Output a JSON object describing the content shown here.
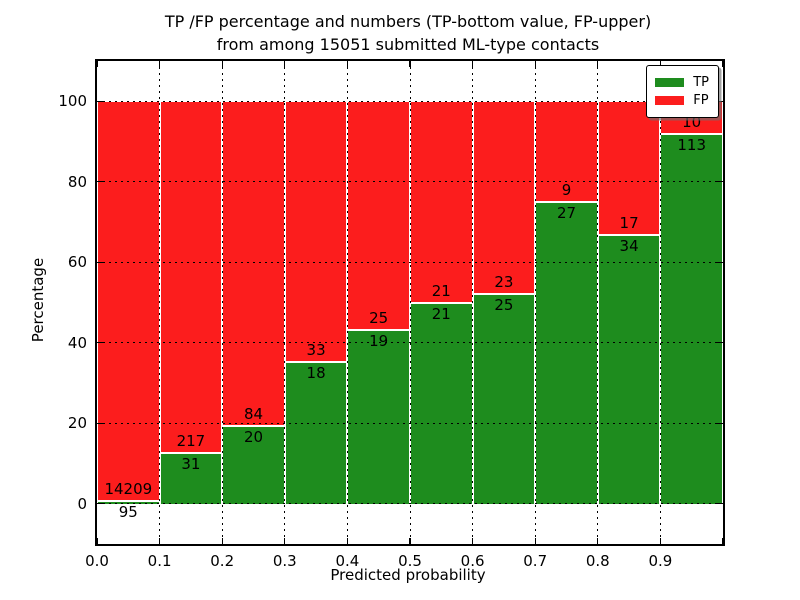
{
  "chart_data": {
    "type": "bar",
    "stacked": true,
    "title_line1": "TP /FP percentage and numbers (TP-bottom value, FP-upper)",
    "title_line2": "from among 15051 submitted ML-type contacts",
    "xlabel": "Predicted probability",
    "ylabel": "Percentage",
    "total_submitted": 15051,
    "xlim": [
      0.0,
      1.0
    ],
    "ylim": [
      -10,
      110
    ],
    "x_tick_labels": [
      "0.0",
      "0.1",
      "0.2",
      "0.3",
      "0.4",
      "0.5",
      "0.6",
      "0.7",
      "0.8",
      "0.9"
    ],
    "y_ticks": [
      0,
      20,
      40,
      60,
      80,
      100
    ],
    "grid": "dotted-black",
    "bar_edge_color": "#ffffff",
    "legend_position": "upper-right",
    "series": [
      {
        "label": "TP",
        "color": "#1e8c1e"
      },
      {
        "label": "FP",
        "color": "#fc1d1d"
      }
    ],
    "bins": [
      {
        "range": "0.0-0.1",
        "tp": 95,
        "fp": 14209
      },
      {
        "range": "0.1-0.2",
        "tp": 31,
        "fp": 217
      },
      {
        "range": "0.2-0.3",
        "tp": 20,
        "fp": 84
      },
      {
        "range": "0.3-0.4",
        "tp": 18,
        "fp": 33
      },
      {
        "range": "0.4-0.5",
        "tp": 19,
        "fp": 25
      },
      {
        "range": "0.5-0.6",
        "tp": 21,
        "fp": 21
      },
      {
        "range": "0.6-0.7",
        "tp": 25,
        "fp": 23
      },
      {
        "range": "0.7-0.8",
        "tp": 27,
        "fp": 9
      },
      {
        "range": "0.8-0.9",
        "tp": 34,
        "fp": 17
      },
      {
        "range": "0.9-1.0",
        "tp": 113,
        "fp": 10
      }
    ]
  }
}
